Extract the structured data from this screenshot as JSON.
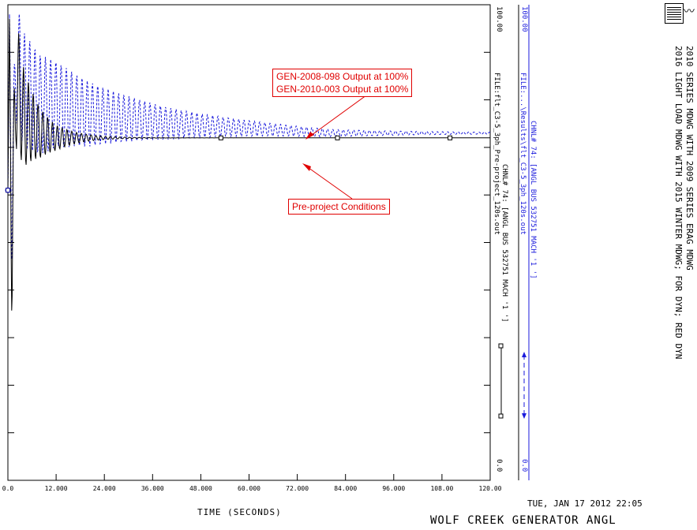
{
  "chart_data": {
    "type": "line",
    "xlabel": "TIME (SECONDS)",
    "xlim": [
      0,
      120
    ],
    "x_ticks": [
      "0.0",
      "12.000",
      "24.000",
      "36.000",
      "48.000",
      "60.000",
      "72.000",
      "84.000",
      "96.000",
      "108.00",
      "120.00"
    ],
    "channels": [
      {
        "label": "CHNL# 74: [ANGL BUS 532751 MACH '1 ']",
        "file": "FILE:...\\Results\\flt_C3-5_3ph_120s.out",
        "max": "100.00",
        "min": "0.0",
        "color": "#1a1adc",
        "style": "dashed"
      },
      {
        "label": "CHNL# 74: [ANGL BUS 532751 MACH '1 ']",
        "file": "FILE:flt_C3-5_3ph_Pre-project_120s.out",
        "max": "100.00",
        "min": "0.0",
        "color": "#000000",
        "style": "solid"
      }
    ],
    "series": [
      {
        "name": "CHNL# 74: [ANGL BUS 532751 MACH '1 ']",
        "x": [
          0,
          0.4,
          1,
          2,
          4,
          8,
          12,
          20,
          30,
          40,
          60,
          80,
          100,
          120
        ],
        "y": [
          61,
          98,
          55,
          88,
          82,
          79,
          79,
          77,
          76,
          75,
          74,
          73,
          73,
          73
        ]
      },
      {
        "name": "CHNL# 74: [ANGL BUS 532751 MACH '1 ']",
        "x": [
          0,
          0.4,
          1,
          2,
          4,
          8,
          12,
          20,
          30,
          40,
          60,
          80,
          100,
          120
        ],
        "y": [
          61,
          97,
          47,
          84,
          76,
          73,
          72,
          72,
          72,
          72,
          72,
          72,
          72,
          72
        ]
      }
    ]
  },
  "annotations": {
    "upper_line1": "GEN-2008-098 Output at 100%",
    "upper_line2": "GEN-2010-003 Output at 100%",
    "lower": "Pre-project Conditions"
  },
  "header": {
    "line1": "2010 SERIES MDWG WITH 2009 SERIES ERAG MDWG",
    "line2": "2016 LIGHT LOAD MDWG WITH 2015 WINTER MDWG; FOR DYN; RED DYN"
  },
  "footer": {
    "timestamp": "TUE, JAN 17 2012   22:05",
    "title": "WOLF CREEK GENERATOR ANGL"
  },
  "colors": {
    "annotation": "#e00000",
    "dashed_series": "#1a1adc",
    "solid_series": "#000000"
  }
}
